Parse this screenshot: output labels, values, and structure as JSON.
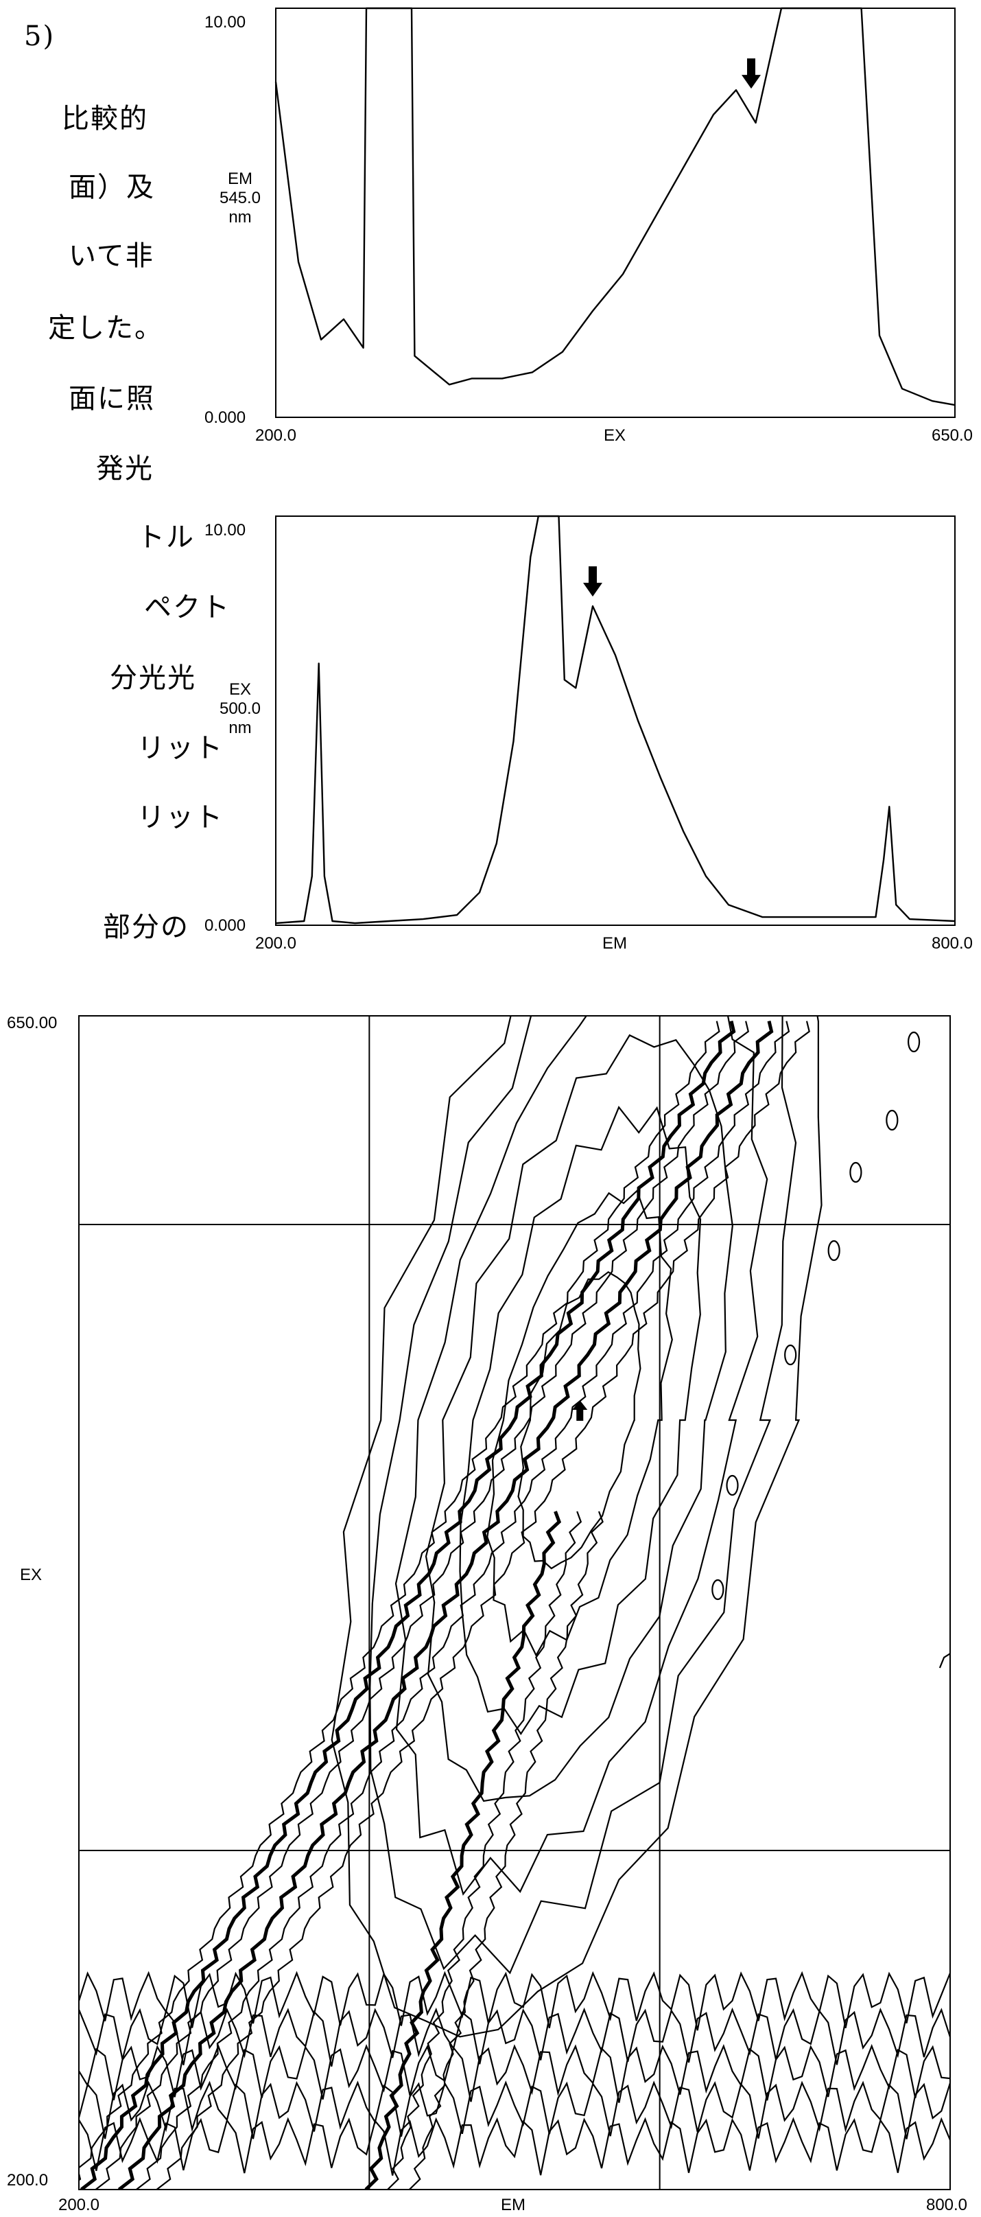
{
  "text_fragments": [
    "5)",
    "比較的",
    "面）及",
    "いて非",
    "定した。",
    "面に照",
    "発光",
    "トル",
    "ペクト",
    "分光光",
    "リット",
    "リット",
    "部分の"
  ],
  "chart_data": [
    {
      "type": "line",
      "ylabel_lines": [
        "EM",
        "545.0",
        "nm"
      ],
      "xlabel": "EX",
      "xlim": [
        200.0,
        650.0
      ],
      "ylim": [
        0.0,
        10.0
      ],
      "x_tick_labels": [
        "200.0",
        "650.0"
      ],
      "y_tick_labels": [
        "0.000",
        "10.00"
      ],
      "annotation": "peak-arrow",
      "arrow_at": [
        515,
        7.8
      ],
      "series": [
        {
          "x": [
            200,
            215,
            230,
            245,
            258,
            260,
            290,
            292,
            315,
            330,
            350,
            370,
            390,
            410,
            430,
            450,
            470,
            490,
            505,
            518,
            535,
            540,
            588,
            600,
            615,
            635,
            650
          ],
          "y": [
            8.2,
            3.8,
            1.9,
            2.4,
            1.7,
            10.0,
            10.0,
            1.5,
            0.8,
            0.95,
            0.95,
            1.1,
            1.6,
            2.6,
            3.5,
            4.8,
            6.1,
            7.4,
            8.0,
            7.2,
            10.0,
            10.0,
            10.0,
            2.0,
            0.7,
            0.4,
            0.3
          ]
        }
      ]
    },
    {
      "type": "line",
      "ylabel_lines": [
        "EX",
        "500.0",
        "nm"
      ],
      "xlabel": "EM",
      "xlim": [
        200.0,
        800.0
      ],
      "ylim": [
        0.0,
        10.0
      ],
      "x_tick_labels": [
        "200.0",
        "800.0"
      ],
      "y_tick_labels": [
        "0.000",
        "10.00"
      ],
      "annotation": "peak-arrow",
      "arrow_at": [
        480,
        7.8
      ],
      "series": [
        {
          "x": [
            200,
            225,
            232,
            238,
            243,
            250,
            270,
            300,
            330,
            360,
            380,
            395,
            410,
            425,
            432,
            450,
            455,
            465,
            480,
            500,
            520,
            540,
            560,
            580,
            600,
            630,
            730,
            737,
            742,
            748,
            760,
            800
          ],
          "y": [
            0.05,
            0.1,
            1.2,
            6.4,
            1.2,
            0.1,
            0.05,
            0.1,
            0.15,
            0.25,
            0.8,
            2.0,
            4.5,
            9.0,
            10.0,
            10.0,
            6.0,
            5.8,
            7.8,
            6.6,
            5.0,
            3.6,
            2.3,
            1.2,
            0.5,
            0.2,
            0.2,
            1.6,
            2.9,
            0.5,
            0.15,
            0.1
          ]
        }
      ]
    },
    {
      "type": "heatmap",
      "style": "contour",
      "xlabel": "EM",
      "ylabel": "EX",
      "xlim": [
        200.0,
        800.0
      ],
      "ylim": [
        200.0,
        650.0
      ],
      "x_tick_labels": [
        "200.0",
        "800.0"
      ],
      "y_tick_labels": [
        "200.0",
        "650.00"
      ],
      "gridlines_x": [
        400,
        600
      ],
      "gridlines_y": [
        330,
        570
      ],
      "annotation": "peak-arrow",
      "arrow_at": [
        545,
        500
      ]
    }
  ]
}
